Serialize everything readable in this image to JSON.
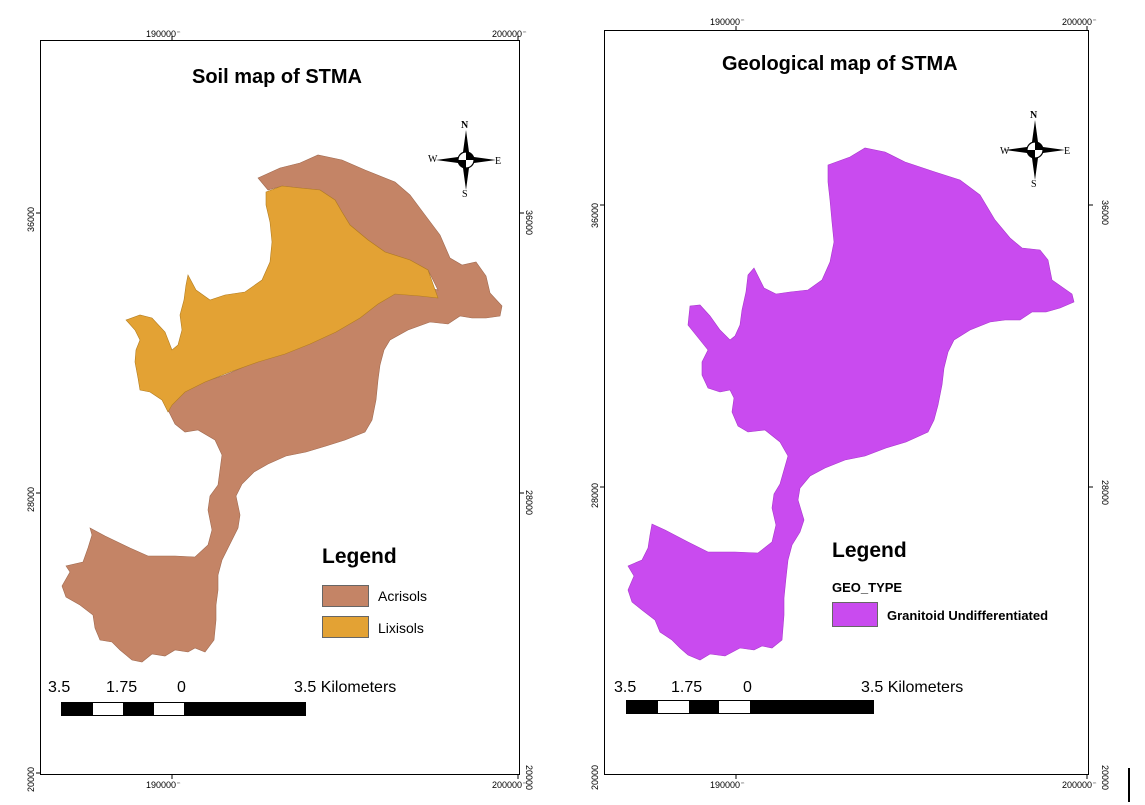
{
  "left_map": {
    "title": "Soil map of STMA",
    "grid": {
      "top_x": [
        "190000",
        "200000"
      ],
      "bottom_x": [
        "190000",
        "200000"
      ],
      "left_y": [
        "36000",
        "28000",
        "20000"
      ],
      "right_y": [
        "36000",
        "28000",
        "20000"
      ],
      "unit_small": "m"
    },
    "legend": {
      "title": "Legend",
      "items": [
        {
          "label": "Acrisols",
          "color": "#c48466"
        },
        {
          "label": "Lixisols",
          "color": "#e3a234"
        }
      ]
    },
    "scale": {
      "labels": [
        "3.5",
        "1.75",
        "0"
      ],
      "unit_label": "3.5 Kilometers"
    },
    "compass": {
      "n": "N",
      "s": "S",
      "e": "E",
      "w": "W"
    }
  },
  "right_map": {
    "title": "Geological map of STMA",
    "grid": {
      "top_x": [
        "190000",
        "200000"
      ],
      "bottom_x": [
        "190000",
        "200000"
      ],
      "left_y": [
        "36000",
        "28000",
        "20000"
      ],
      "right_y": [
        "36000",
        "28000",
        "20000"
      ],
      "unit_small": "m"
    },
    "legend": {
      "title": "Legend",
      "field": "GEO_TYPE",
      "items": [
        {
          "label": "Granitoid Undifferentiated",
          "color": "#c94bef"
        }
      ]
    },
    "scale": {
      "labels": [
        "3.5",
        "1.75",
        "0"
      ],
      "unit_label": "3.5 Kilometers"
    },
    "compass": {
      "n": "N",
      "s": "S",
      "e": "E",
      "w": "W"
    }
  },
  "colors": {
    "acrisols": "#c48466",
    "lixisols": "#e3a234",
    "granitoid": "#c94bef",
    "frame": "#000000"
  }
}
